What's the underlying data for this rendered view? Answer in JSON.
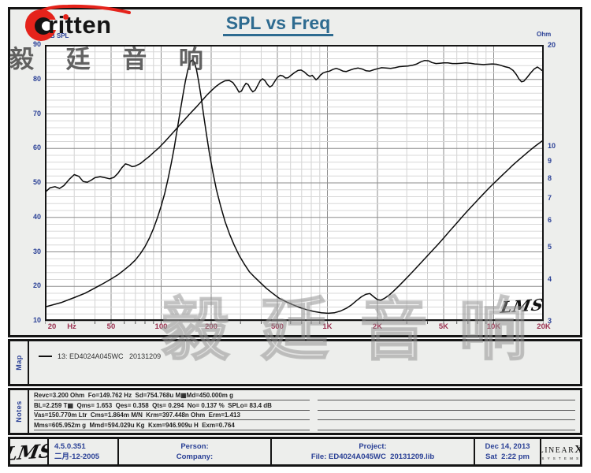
{
  "header": {
    "logo_text": "ritten",
    "title": "SPL vs Freq",
    "left_axis_unit": "dB SPL",
    "right_axis_unit": "Ohm"
  },
  "watermark": {
    "text": "毅 廷 音 响",
    "plot_script": "LMS"
  },
  "colors": {
    "accent_red": "#e5231b",
    "title_teal": "#2e6b90",
    "axis_navy": "#2b4196",
    "freq_maroon": "#9a3150",
    "panel_gray": "#edeeec"
  },
  "chart_data": {
    "type": "line",
    "title": "SPL vs Freq",
    "grid": true,
    "x_axis": {
      "scale": "log",
      "min": 20,
      "max": 20000,
      "unit": "Hz",
      "tick_values": [
        20,
        50,
        100,
        200,
        500,
        1000,
        2000,
        5000,
        10000,
        20000
      ],
      "tick_labels": [
        "20",
        "50",
        "100",
        "200",
        "500",
        "1K",
        "2K",
        "5K",
        "10K",
        "20K"
      ]
    },
    "left_axis": {
      "label": "dB SPL",
      "min": 10,
      "max": 90,
      "major_step": 10,
      "minor_step": 2,
      "ticks": [
        90,
        80,
        70,
        60,
        50,
        40,
        30,
        20,
        10
      ]
    },
    "right_axis": {
      "label": "Ohm",
      "scale": "log",
      "min": 3,
      "max": 20,
      "ticks": [
        20,
        10,
        9,
        8,
        7,
        6,
        5,
        4,
        3
      ]
    },
    "series": [
      {
        "name": "SPL",
        "axis": "left",
        "color": "#0b0b0b",
        "points": [
          [
            20,
            47.2
          ],
          [
            21.5,
            48.6
          ],
          [
            23,
            48.9
          ],
          [
            24.5,
            48.4
          ],
          [
            26,
            49.2
          ],
          [
            28,
            51.0
          ],
          [
            30,
            52.4
          ],
          [
            32,
            51.9
          ],
          [
            34,
            50.4
          ],
          [
            36,
            50.2
          ],
          [
            38,
            50.8
          ],
          [
            40,
            51.5
          ],
          [
            43,
            51.8
          ],
          [
            46,
            51.5
          ],
          [
            49,
            51.2
          ],
          [
            52,
            51.6
          ],
          [
            55,
            52.8
          ],
          [
            58,
            54.4
          ],
          [
            61,
            55.5
          ],
          [
            64,
            55.2
          ],
          [
            67,
            54.7
          ],
          [
            70,
            54.9
          ],
          [
            75,
            55.6
          ],
          [
            80,
            56.7
          ],
          [
            85,
            57.7
          ],
          [
            90,
            58.8
          ],
          [
            97,
            60.2
          ],
          [
            105,
            61.9
          ],
          [
            113,
            63.6
          ],
          [
            121,
            65.2
          ],
          [
            130,
            66.9
          ],
          [
            140,
            68.6
          ],
          [
            150,
            70.2
          ],
          [
            162,
            71.9
          ],
          [
            175,
            73.7
          ],
          [
            188,
            75.4
          ],
          [
            200,
            76.7
          ],
          [
            213,
            77.9
          ],
          [
            227,
            78.9
          ],
          [
            242,
            79.6
          ],
          [
            257,
            79.7
          ],
          [
            270,
            79.1
          ],
          [
            283,
            77.7
          ],
          [
            294,
            76.3
          ],
          [
            304,
            76.6
          ],
          [
            314,
            77.9
          ],
          [
            324,
            78.9
          ],
          [
            334,
            78.5
          ],
          [
            344,
            77.3
          ],
          [
            356,
            76.4
          ],
          [
            368,
            76.9
          ],
          [
            381,
            78.3
          ],
          [
            394,
            79.6
          ],
          [
            408,
            80.2
          ],
          [
            422,
            79.6
          ],
          [
            436,
            78.5
          ],
          [
            450,
            77.8
          ],
          [
            465,
            78.2
          ],
          [
            482,
            79.4
          ],
          [
            500,
            80.6
          ],
          [
            520,
            81.2
          ],
          [
            540,
            81.0
          ],
          [
            560,
            80.4
          ],
          [
            580,
            80.5
          ],
          [
            605,
            81.2
          ],
          [
            635,
            82.0
          ],
          [
            665,
            82.6
          ],
          [
            695,
            82.7
          ],
          [
            725,
            82.2
          ],
          [
            755,
            81.4
          ],
          [
            785,
            80.9
          ],
          [
            810,
            81.2
          ],
          [
            830,
            80.6
          ],
          [
            855,
            79.9
          ],
          [
            880,
            80.4
          ],
          [
            910,
            81.3
          ],
          [
            945,
            81.9
          ],
          [
            985,
            82.2
          ],
          [
            1030,
            82.4
          ],
          [
            1080,
            82.9
          ],
          [
            1130,
            83.2
          ],
          [
            1180,
            82.9
          ],
          [
            1240,
            82.4
          ],
          [
            1300,
            82.3
          ],
          [
            1370,
            82.7
          ],
          [
            1450,
            83.1
          ],
          [
            1530,
            83.3
          ],
          [
            1620,
            83.0
          ],
          [
            1710,
            82.5
          ],
          [
            1800,
            82.4
          ],
          [
            1900,
            82.8
          ],
          [
            2000,
            83.1
          ],
          [
            2120,
            83.4
          ],
          [
            2250,
            83.3
          ],
          [
            2400,
            83.2
          ],
          [
            2550,
            83.4
          ],
          [
            2700,
            83.7
          ],
          [
            2870,
            83.8
          ],
          [
            3050,
            83.9
          ],
          [
            3250,
            84.1
          ],
          [
            3450,
            84.5
          ],
          [
            3650,
            85.1
          ],
          [
            3850,
            85.5
          ],
          [
            4050,
            85.4
          ],
          [
            4250,
            84.9
          ],
          [
            4500,
            84.6
          ],
          [
            4750,
            84.7
          ],
          [
            5000,
            84.8
          ],
          [
            5300,
            84.8
          ],
          [
            5650,
            84.6
          ],
          [
            6000,
            84.6
          ],
          [
            6400,
            84.7
          ],
          [
            6800,
            84.8
          ],
          [
            7250,
            84.7
          ],
          [
            7700,
            84.5
          ],
          [
            8200,
            84.4
          ],
          [
            8700,
            84.3
          ],
          [
            9200,
            84.4
          ],
          [
            9800,
            84.5
          ],
          [
            10400,
            84.4
          ],
          [
            11000,
            84.1
          ],
          [
            11700,
            83.7
          ],
          [
            12400,
            83.4
          ],
          [
            13100,
            82.6
          ],
          [
            13700,
            81.4
          ],
          [
            14200,
            80.1
          ],
          [
            14700,
            79.3
          ],
          [
            15200,
            79.5
          ],
          [
            15900,
            80.6
          ],
          [
            16700,
            81.9
          ],
          [
            17500,
            83.0
          ],
          [
            18300,
            83.6
          ],
          [
            19000,
            83.1
          ],
          [
            19500,
            82.6
          ],
          [
            20000,
            83.0
          ]
        ]
      },
      {
        "name": "Impedance",
        "axis": "right",
        "color": "#0b0b0b",
        "points": [
          [
            20,
            3.3
          ],
          [
            25,
            3.4
          ],
          [
            30,
            3.52
          ],
          [
            35,
            3.63
          ],
          [
            40,
            3.76
          ],
          [
            45,
            3.88
          ],
          [
            50,
            4.0
          ],
          [
            55,
            4.12
          ],
          [
            60,
            4.26
          ],
          [
            65,
            4.4
          ],
          [
            70,
            4.56
          ],
          [
            75,
            4.76
          ],
          [
            80,
            5.0
          ],
          [
            85,
            5.3
          ],
          [
            90,
            5.66
          ],
          [
            95,
            6.1
          ],
          [
            100,
            6.6
          ],
          [
            105,
            7.2
          ],
          [
            110,
            7.95
          ],
          [
            115,
            8.85
          ],
          [
            120,
            9.9
          ],
          [
            125,
            11.2
          ],
          [
            130,
            12.6
          ],
          [
            135,
            14.1
          ],
          [
            140,
            15.6
          ],
          [
            145,
            16.9
          ],
          [
            150,
            17.8
          ],
          [
            154,
            18.05
          ],
          [
            158,
            17.8
          ],
          [
            163,
            16.9
          ],
          [
            168,
            15.6
          ],
          [
            174,
            14.0
          ],
          [
            180,
            12.4
          ],
          [
            187,
            10.9
          ],
          [
            195,
            9.5
          ],
          [
            205,
            8.3
          ],
          [
            215,
            7.4
          ],
          [
            228,
            6.6
          ],
          [
            242,
            5.95
          ],
          [
            258,
            5.45
          ],
          [
            275,
            5.05
          ],
          [
            295,
            4.7
          ],
          [
            315,
            4.45
          ],
          [
            340,
            4.2
          ],
          [
            365,
            4.05
          ],
          [
            395,
            3.9
          ],
          [
            430,
            3.75
          ],
          [
            470,
            3.62
          ],
          [
            515,
            3.5
          ],
          [
            565,
            3.42
          ],
          [
            620,
            3.35
          ],
          [
            680,
            3.29
          ],
          [
            750,
            3.24
          ],
          [
            830,
            3.2
          ],
          [
            920,
            3.17
          ],
          [
            1010,
            3.16
          ],
          [
            1100,
            3.17
          ],
          [
            1200,
            3.21
          ],
          [
            1300,
            3.27
          ],
          [
            1400,
            3.35
          ],
          [
            1500,
            3.45
          ],
          [
            1600,
            3.54
          ],
          [
            1700,
            3.6
          ],
          [
            1800,
            3.62
          ],
          [
            1900,
            3.54
          ],
          [
            2000,
            3.47
          ],
          [
            2100,
            3.46
          ],
          [
            2200,
            3.5
          ],
          [
            2350,
            3.58
          ],
          [
            2500,
            3.68
          ],
          [
            2700,
            3.82
          ],
          [
            2900,
            3.96
          ],
          [
            3100,
            4.1
          ],
          [
            3350,
            4.27
          ],
          [
            3600,
            4.44
          ],
          [
            3900,
            4.63
          ],
          [
            4200,
            4.82
          ],
          [
            4600,
            5.06
          ],
          [
            5000,
            5.3
          ],
          [
            5400,
            5.54
          ],
          [
            5900,
            5.82
          ],
          [
            6400,
            6.1
          ],
          [
            6900,
            6.36
          ],
          [
            7400,
            6.6
          ],
          [
            8000,
            6.88
          ],
          [
            8600,
            7.15
          ],
          [
            9200,
            7.4
          ],
          [
            9800,
            7.64
          ],
          [
            10500,
            7.9
          ],
          [
            11300,
            8.18
          ],
          [
            12100,
            8.45
          ],
          [
            13000,
            8.74
          ],
          [
            14000,
            9.03
          ],
          [
            15000,
            9.3
          ],
          [
            16000,
            9.56
          ],
          [
            17000,
            9.8
          ],
          [
            18000,
            10.02
          ],
          [
            19000,
            10.22
          ],
          [
            20000,
            10.42
          ]
        ]
      }
    ],
    "legend_position": "map-panel-below"
  },
  "map": {
    "tab": "Map",
    "legend_text": "13: ED4024A045WC   20131209"
  },
  "notes": {
    "tab": "Notes",
    "lines": [
      "Revc=3.200 Ohm  Fo=149.762 Hz  Sd=754.768u M▦Md=450.000m g",
      "BL=2.259 T▦  Qms= 1.653  Qes= 0.358  Qts= 0.294  No= 0.137 %  SPLo= 83.4 dB",
      "Vas=150.770m Ltr  Cms=1.864m M/N  Krm=397.448n Ohm  Erm=1.413",
      "Mms=605.952m g  Mmd=594.029u Kg  Kxm=946.909u H  Exm=0.764"
    ]
  },
  "footer": {
    "lms_logo": "LMS",
    "version": "4.5.0.351",
    "version_date": "二月-12-2005",
    "person_label": "Person:",
    "company_label": "Company:",
    "project_label": "Project:",
    "file_label": "File: ED4024A045WC  20131209.lib",
    "date": "Dec 14, 2013",
    "time": "Sat  2:22 pm",
    "brand_name": "LINEAR",
    "brand_x": "X",
    "brand_systems": "S Y S T E M S"
  }
}
